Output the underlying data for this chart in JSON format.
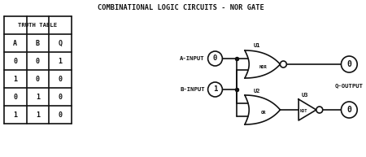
{
  "title": "COMBINATIONAL LOGIC CIRCUITS - NOR GATE",
  "truth_table_header": "TRUTH TABLE",
  "col_headers": [
    "A",
    "B",
    "Q"
  ],
  "rows": [
    [
      "0",
      "0",
      "1"
    ],
    [
      "1",
      "0",
      "0"
    ],
    [
      "0",
      "1",
      "0"
    ],
    [
      "1",
      "1",
      "0"
    ]
  ],
  "a_label": "A-INPUT",
  "b_label": "B-INPUT",
  "q_label": "Q-OUTPUT",
  "u1_label": "U1",
  "u2_label": "U2",
  "u3_label": "U3",
  "nor_label": "NOR",
  "or_label": "OR",
  "not_label": "NOT",
  "a_val": "0",
  "b_val": "1",
  "q1_val": "0",
  "q2_val": "0",
  "ink": "#111111",
  "bg": "#ffffff",
  "lw": 1.2,
  "figsize": [
    4.5,
    1.93
  ],
  "dpi": 100
}
